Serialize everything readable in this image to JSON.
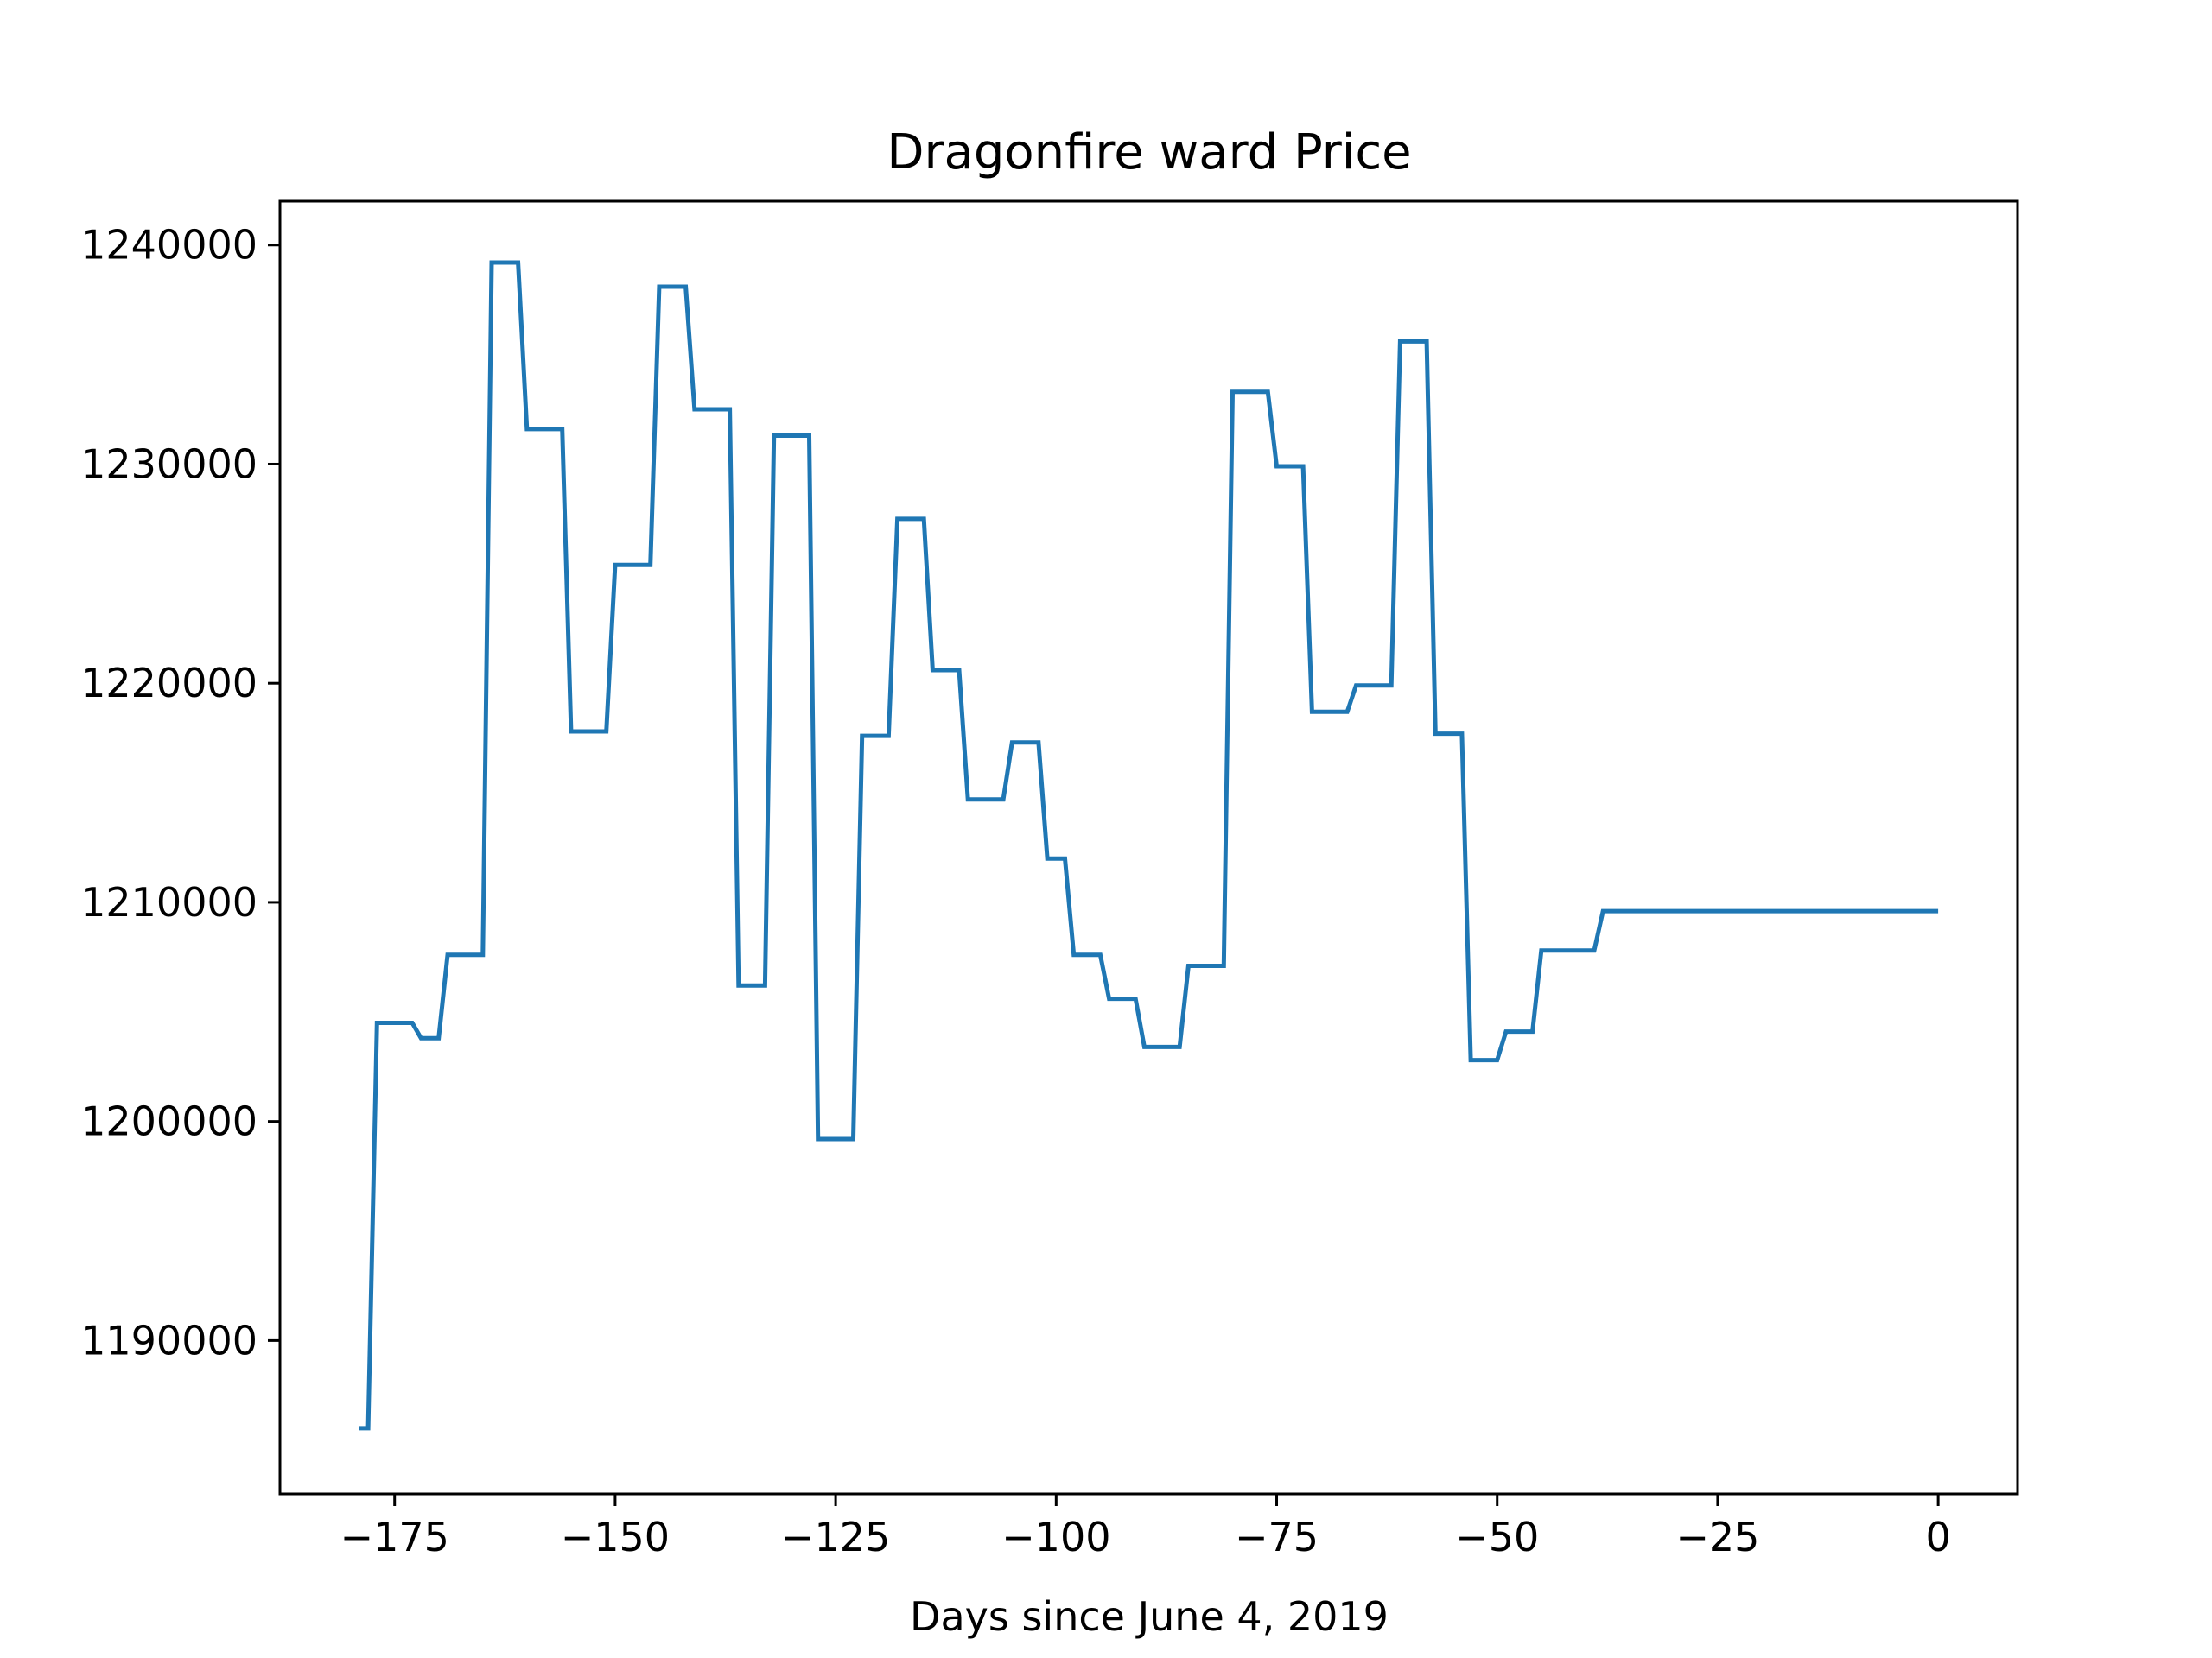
{
  "chart_data": {
    "type": "line",
    "title": "Dragonfire ward Price",
    "xlabel": "Days since June 4, 2019",
    "ylabel": "",
    "xlim": [
      -188,
      9
    ],
    "ylim": [
      1183000,
      1242000
    ],
    "x_ticks": [
      -175,
      -150,
      -125,
      -100,
      -75,
      -50,
      -25,
      0
    ],
    "x_tick_labels": [
      "−175",
      "−150",
      "−125",
      "−100",
      "−75",
      "−50",
      "−25",
      "0"
    ],
    "y_ticks": [
      1190000,
      1200000,
      1210000,
      1220000,
      1230000,
      1240000
    ],
    "y_tick_labels": [
      "1190000",
      "1200000",
      "1210000",
      "1220000",
      "1230000",
      "1240000"
    ],
    "grid": false,
    "line_color": "#1f77b4",
    "series": [
      {
        "x": [
          -179,
          -178,
          -177,
          -173,
          -172,
          -170,
          -169,
          -165,
          -164,
          -161,
          -160,
          -156,
          -155,
          -151,
          -150,
          -146,
          -145,
          -142,
          -141,
          -137,
          -136,
          -133,
          -132,
          -128,
          -127,
          -123,
          -122,
          -119,
          -118,
          -115,
          -114,
          -111,
          -110,
          -106,
          -105,
          -102,
          -101,
          -99,
          -98,
          -95,
          -94,
          -91,
          -90,
          -86,
          -85,
          -81,
          -80,
          -76,
          -75,
          -72,
          -71,
          -67,
          -66,
          -62,
          -61,
          -58,
          -57,
          -54,
          -53,
          -50,
          -49,
          -46,
          -45,
          -39,
          -38,
          -35,
          -34,
          -31,
          -30,
          -24,
          -23,
          -19,
          -18,
          -13,
          -12,
          -7,
          -6,
          -3,
          -2,
          0
        ],
        "y": [
          1186000,
          1186000,
          1204500,
          1204500,
          1203800,
          1203800,
          1207600,
          1207600,
          1239200,
          1239200,
          1231600,
          1231600,
          1217800,
          1217800,
          1225400,
          1225400,
          1238100,
          1238100,
          1232500,
          1232500,
          1206200,
          1206200,
          1231300,
          1231300,
          1199200,
          1199200,
          1217600,
          1217600,
          1227500,
          1227500,
          1220600,
          1220600,
          1214700,
          1214700,
          1217300,
          1217300,
          1212000,
          1212000,
          1207600,
          1207600,
          1205600,
          1205600,
          1203400,
          1203400,
          1207100,
          1207100,
          1233300,
          1233300,
          1229900,
          1229900,
          1218700,
          1218700,
          1219900,
          1219900,
          1235600,
          1235600,
          1217700,
          1217700,
          1202800,
          1202800,
          1204100,
          1204100,
          1207800,
          1207800,
          1209600,
          1209600,
          1209600,
          1209600,
          1209600,
          1209600,
          1209600,
          1209600,
          1209600,
          1209600,
          1209600,
          1209600,
          1209600,
          1209600,
          1209600,
          1209600
        ]
      }
    ]
  }
}
